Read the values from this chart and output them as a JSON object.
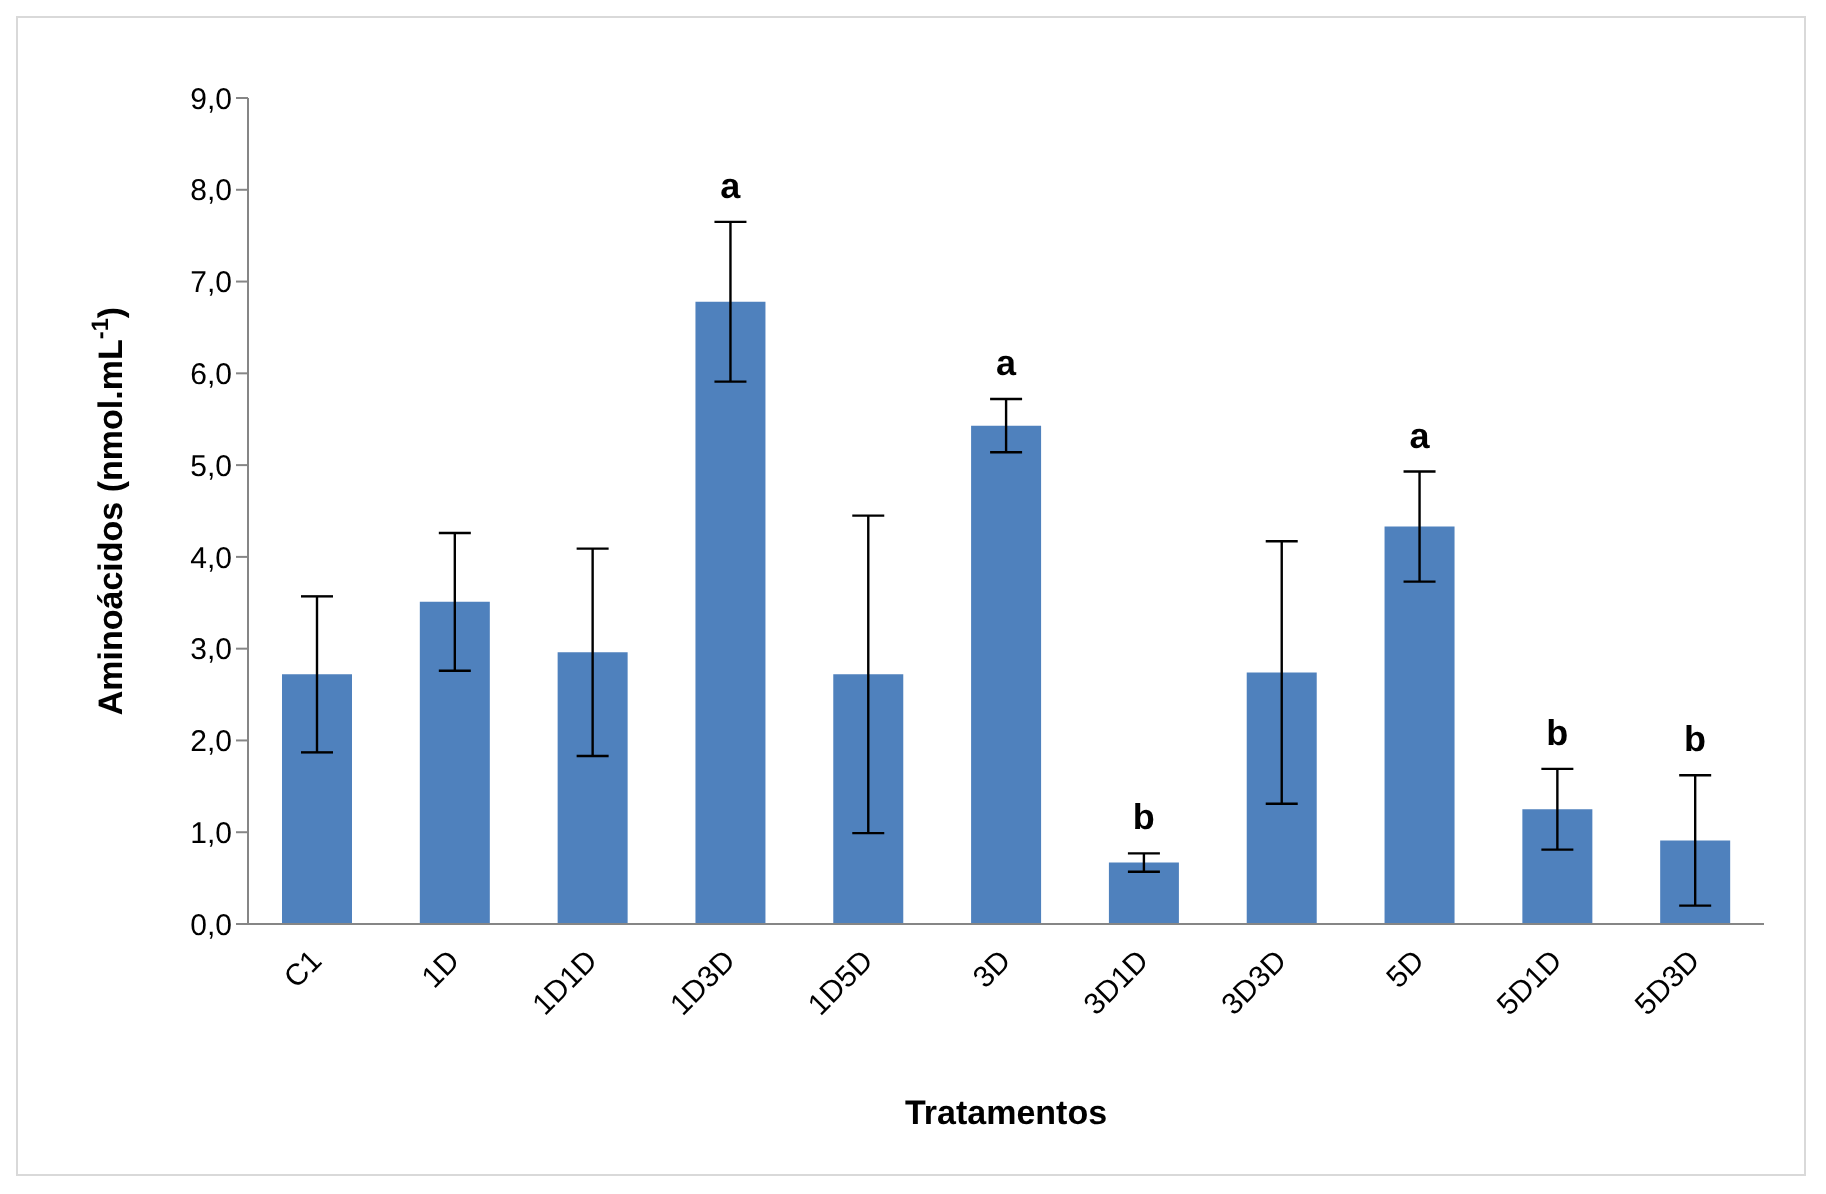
{
  "chart_data": {
    "type": "bar",
    "xlabel": "Tratamentos",
    "ylabel": "Aminoácidos (nmol.mL$^{-1}$)",
    "categories": [
      "C1",
      "1D",
      "1D1D",
      "1D3D",
      "1D5D",
      "3D",
      "3D1D",
      "3D3D",
      "5D",
      "5D1D",
      "5D3D"
    ],
    "values": [
      2.72,
      3.51,
      2.96,
      6.78,
      2.72,
      5.43,
      0.67,
      2.74,
      4.33,
      1.25,
      0.91
    ],
    "errors": [
      0.85,
      0.75,
      1.13,
      0.87,
      1.73,
      0.29,
      0.1,
      1.43,
      0.6,
      0.44,
      0.71
    ],
    "color": "#4f81bd",
    "ylim": [
      0,
      9
    ],
    "yticks": [
      {
        "value": 0,
        "label": "0,0"
      },
      {
        "value": 1,
        "label": "1,0"
      },
      {
        "value": 2,
        "label": "2,0"
      },
      {
        "value": 3,
        "label": "3,0"
      },
      {
        "value": 4,
        "label": "4,0"
      },
      {
        "value": 5,
        "label": "5,0"
      },
      {
        "value": 6,
        "label": "6,0"
      },
      {
        "value": 7,
        "label": "7,0"
      },
      {
        "value": 8,
        "label": "8,0"
      },
      {
        "value": 9,
        "label": "9,0"
      }
    ],
    "annotations": [
      {
        "text": "a",
        "x": "1D3D",
        "y": 7.65
      },
      {
        "text": "a",
        "x": "3D",
        "y": 5.72
      },
      {
        "text": "b",
        "x": "3D1D",
        "y": 0.77
      },
      {
        "text": "a",
        "x": "5D",
        "y": 4.93
      },
      {
        "text": "b",
        "x": "5D1D",
        "y": 1.69
      },
      {
        "text": "b",
        "x": "5D3D",
        "y": 1.62
      }
    ],
    "grid": false,
    "legend": false
  }
}
